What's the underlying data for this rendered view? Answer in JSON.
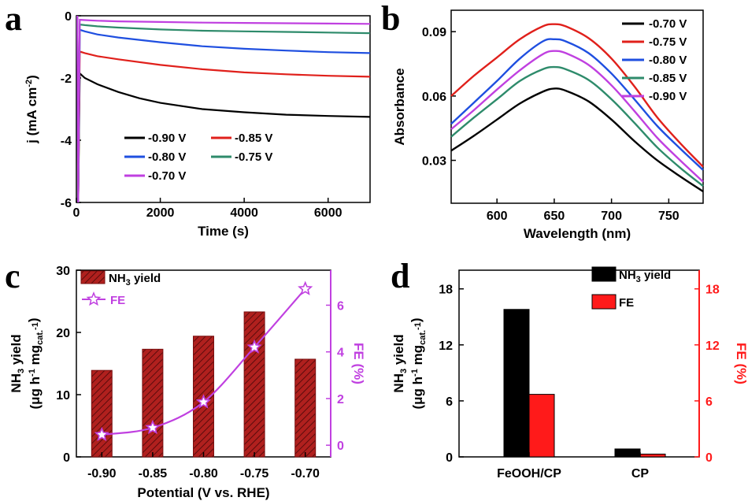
{
  "panels": {
    "a": "a",
    "b": "b",
    "c": "c",
    "d": "d"
  },
  "chart_data": [
    {
      "id": "a",
      "type": "line",
      "xlabel": "Time (s)",
      "ylabel": "j (mA cm-2)",
      "ylabel_parts": [
        "j (mA cm",
        "-2",
        ")"
      ],
      "xlim": [
        0,
        7000
      ],
      "ylim": [
        -6,
        0
      ],
      "xticks": [
        0,
        2000,
        4000,
        6000
      ],
      "yticks": [
        0,
        -2,
        -4,
        -6
      ],
      "legend_columns": 2,
      "series": [
        {
          "name": "-0.90 V",
          "color": "#000000",
          "x": [
            80,
            200,
            500,
            1000,
            1500,
            2000,
            3000,
            4000,
            5000,
            6000,
            7000
          ],
          "y": [
            -1.85,
            -2.0,
            -2.2,
            -2.45,
            -2.65,
            -2.8,
            -3.0,
            -3.1,
            -3.18,
            -3.22,
            -3.25
          ]
        },
        {
          "name": "-0.85 V",
          "color": "#e0201b",
          "x": [
            80,
            200,
            500,
            1000,
            2000,
            3000,
            4000,
            5000,
            6000,
            7000
          ],
          "y": [
            -1.15,
            -1.2,
            -1.3,
            -1.4,
            -1.58,
            -1.72,
            -1.82,
            -1.88,
            -1.93,
            -1.96
          ]
        },
        {
          "name": "-0.80 V",
          "color": "#1f4fe0",
          "x": [
            80,
            200,
            500,
            1000,
            2000,
            3000,
            4000,
            5000,
            6000,
            7000
          ],
          "y": [
            -0.45,
            -0.5,
            -0.6,
            -0.7,
            -0.85,
            -0.98,
            -1.06,
            -1.12,
            -1.17,
            -1.2
          ]
        },
        {
          "name": "-0.75 V",
          "color": "#2e8b6b",
          "x": [
            80,
            200,
            500,
            1000,
            2000,
            3000,
            4000,
            5000,
            6000,
            7000
          ],
          "y": [
            -0.28,
            -0.3,
            -0.34,
            -0.38,
            -0.44,
            -0.48,
            -0.5,
            -0.52,
            -0.54,
            -0.56
          ]
        },
        {
          "name": "-0.70 V",
          "color": "#c040e0",
          "x": [
            80,
            200,
            500,
            1000,
            2000,
            3000,
            4000,
            5000,
            6000,
            7000
          ],
          "y": [
            -0.13,
            -0.14,
            -0.16,
            -0.18,
            -0.2,
            -0.22,
            -0.23,
            -0.24,
            -0.25,
            -0.26
          ]
        }
      ]
    },
    {
      "id": "b",
      "type": "line",
      "xlabel": "Wavelength (nm)",
      "ylabel": "Absorbance",
      "xlim": [
        560,
        780
      ],
      "ylim": [
        0.01,
        0.1
      ],
      "xticks": [
        600,
        650,
        700,
        750
      ],
      "yticks": [
        0.03,
        0.06,
        0.09
      ],
      "ytick_labels": [
        "0.03",
        "0.06",
        "0.09"
      ],
      "series": [
        {
          "name": "-0.70 V",
          "color": "#000000",
          "x": [
            560,
            580,
            600,
            620,
            640,
            650,
            660,
            680,
            700,
            720,
            740,
            760,
            780
          ],
          "y": [
            0.0345,
            0.0415,
            0.049,
            0.0565,
            0.062,
            0.0635,
            0.0625,
            0.0575,
            0.049,
            0.039,
            0.03,
            0.0225,
            0.0155
          ]
        },
        {
          "name": "-0.75 V",
          "color": "#e0201b",
          "x": [
            560,
            580,
            600,
            620,
            640,
            650,
            660,
            680,
            700,
            720,
            740,
            760,
            780
          ],
          "y": [
            0.06,
            0.0695,
            0.078,
            0.0865,
            0.0925,
            0.0935,
            0.0925,
            0.087,
            0.0775,
            0.0645,
            0.05,
            0.038,
            0.027
          ]
        },
        {
          "name": "-0.80 V",
          "color": "#1f4fe0",
          "x": [
            560,
            580,
            600,
            620,
            640,
            650,
            660,
            680,
            700,
            720,
            740,
            760,
            780
          ],
          "y": [
            0.047,
            0.057,
            0.067,
            0.0775,
            0.0855,
            0.0865,
            0.0855,
            0.08,
            0.0705,
            0.0585,
            0.046,
            0.0355,
            0.0255
          ]
        },
        {
          "name": "-0.85 V",
          "color": "#2e8b6b",
          "x": [
            560,
            580,
            600,
            620,
            640,
            650,
            660,
            680,
            700,
            720,
            740,
            760,
            780
          ],
          "y": [
            0.041,
            0.05,
            0.0585,
            0.067,
            0.0725,
            0.0735,
            0.0725,
            0.0675,
            0.0585,
            0.0475,
            0.036,
            0.0265,
            0.018
          ]
        },
        {
          "name": "-0.90 V",
          "color": "#c040e0",
          "x": [
            560,
            580,
            600,
            620,
            640,
            650,
            660,
            680,
            700,
            720,
            740,
            760,
            780
          ],
          "y": [
            0.0445,
            0.0535,
            0.063,
            0.072,
            0.0795,
            0.081,
            0.08,
            0.0745,
            0.065,
            0.053,
            0.0405,
            0.03,
            0.02
          ]
        }
      ]
    },
    {
      "id": "c",
      "type": "bar",
      "xlabel": "Potential (V vs. RHE)",
      "ylabel_line1": "NH3 yield",
      "ylabel_line2": "(μg h-1 mgcat.-1)",
      "ylabel_parts_l1": [
        "NH",
        "3",
        " yield"
      ],
      "ylabel_parts_l2": [
        "(μg h",
        "-1",
        " mg",
        "cat.",
        "-1",
        ")"
      ],
      "y2label": "FE (%)",
      "categories": [
        "-0.90",
        "-0.85",
        "-0.80",
        "-0.75",
        "-0.70"
      ],
      "ylim": [
        0,
        30
      ],
      "yticks": [
        0,
        10,
        20,
        30
      ],
      "y2lim": [
        -0.5,
        7.5
      ],
      "y2ticks": [
        0,
        2,
        4,
        6
      ],
      "series": [
        {
          "name": "NH3 yield",
          "name_parts": [
            "NH",
            "3",
            " yield"
          ],
          "type": "bar",
          "color": "#a01818",
          "values": [
            13.9,
            17.3,
            19.4,
            23.3,
            15.7
          ]
        },
        {
          "name": "FE",
          "type": "line",
          "axis": "right",
          "color": "#c040e0",
          "values": [
            0.45,
            0.75,
            1.85,
            4.2,
            6.7
          ]
        }
      ]
    },
    {
      "id": "d",
      "type": "bar",
      "ylabel_line1": "NH3 yield",
      "ylabel_line2": "(μg h-1 mgcat.-1)",
      "ylabel_parts_l1": [
        "NH",
        "3",
        " yield"
      ],
      "ylabel_parts_l2": [
        "(μg h",
        "-1",
        " mg",
        "cat.",
        "-1",
        ")"
      ],
      "y2label": "FE (%)",
      "categories": [
        "FeOOH/CP",
        "CP"
      ],
      "ylim": [
        0,
        20
      ],
      "yticks": [
        0,
        6,
        12,
        18
      ],
      "y2lim": [
        0,
        20
      ],
      "y2ticks": [
        0,
        6,
        12,
        18
      ],
      "series": [
        {
          "name": "NH3 yield",
          "name_parts": [
            "NH",
            "3",
            " yield"
          ],
          "color": "#000000",
          "values": [
            15.8,
            0.85
          ]
        },
        {
          "name": "FE",
          "axis": "right",
          "color": "#ff1a1a",
          "values": [
            6.7,
            0.3
          ]
        }
      ]
    }
  ]
}
